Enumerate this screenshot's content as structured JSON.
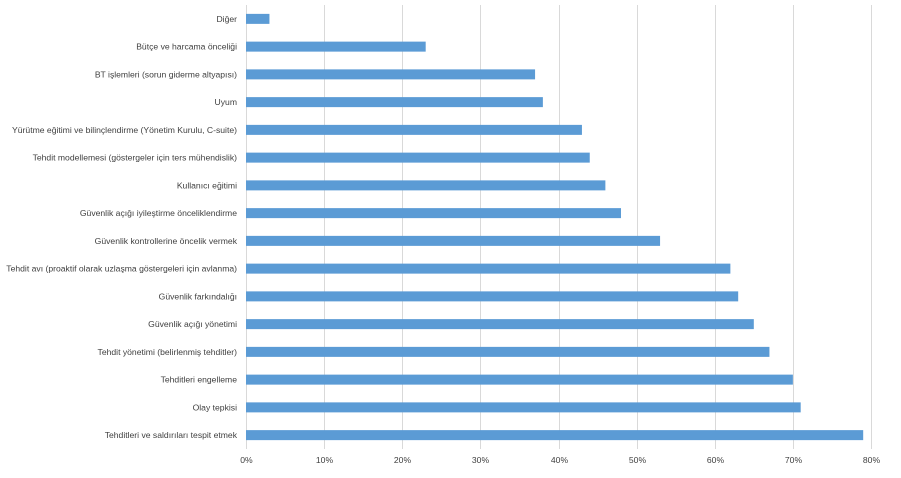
{
  "chart_data": {
    "type": "bar",
    "orientation": "horizontal",
    "title": "",
    "xlabel": "",
    "ylabel": "",
    "xlim": [
      0,
      80
    ],
    "x_tick_labels": [
      "0%",
      "10%",
      "20%",
      "30%",
      "40%",
      "50%",
      "60%",
      "70%",
      "80%"
    ],
    "grid": true,
    "legend": "none",
    "bar_color": "#5b9bd5",
    "categories": [
      "Diğer",
      "Bütçe ve harcama önceliği",
      "BT işlemleri (sorun giderme altyapısı)",
      "Uyum",
      "Yürütme eğitimi ve bilinçlendirme (Yönetim Kurulu, C-suite)",
      "Tehdit modellemesi (göstergeler için ters mühendislik)",
      "Kullanıcı eğitimi",
      "Güvenlik açığı iyileştirme önceliklendirme",
      "Güvenlik kontrollerine öncelik vermek",
      "Tehdit avı (proaktif olarak uzlaşma göstergeleri için avlanma)",
      "Güvenlik farkındalığı",
      "Güvenlik açığı yönetimi",
      "Tehdit yönetimi (belirlenmiş tehditler)",
      "Tehditleri engelleme",
      "Olay tepkisi",
      "Tehditleri ve saldırıları tespit etmek"
    ],
    "values": [
      3,
      23,
      37,
      38,
      43,
      44,
      46,
      48,
      53,
      62,
      63,
      65,
      67,
      70,
      71,
      79
    ]
  }
}
